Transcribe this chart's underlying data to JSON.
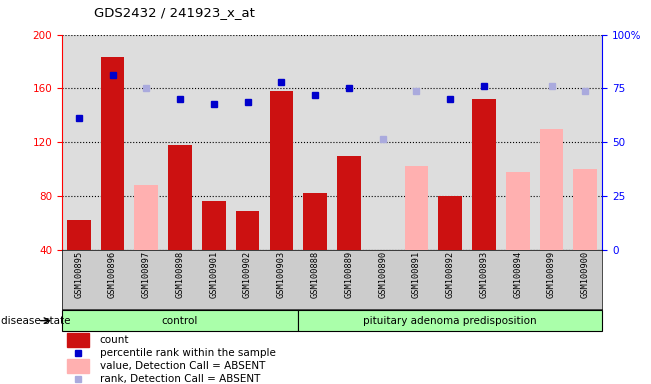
{
  "title": "GDS2432 / 241923_x_at",
  "samples": [
    "GSM100895",
    "GSM100896",
    "GSM100897",
    "GSM100898",
    "GSM100901",
    "GSM100902",
    "GSM100903",
    "GSM100888",
    "GSM100889",
    "GSM100890",
    "GSM100891",
    "GSM100892",
    "GSM100893",
    "GSM100894",
    "GSM100899",
    "GSM100900"
  ],
  "n_control": 7,
  "n_pituitary": 9,
  "count_values": [
    62,
    183,
    null,
    118,
    76,
    69,
    158,
    82,
    110,
    null,
    null,
    80,
    152,
    null,
    null,
    null
  ],
  "absent_value_bars": [
    null,
    null,
    88,
    null,
    null,
    null,
    null,
    null,
    null,
    null,
    102,
    null,
    null,
    98,
    130,
    100
  ],
  "percentile_rank_left": [
    138,
    170,
    null,
    152,
    148,
    150,
    165,
    155,
    160,
    null,
    null,
    152,
    162,
    null,
    null,
    null
  ],
  "absent_rank_left": [
    null,
    null,
    160,
    null,
    null,
    null,
    null,
    null,
    null,
    122,
    158,
    null,
    null,
    null,
    162,
    158
  ],
  "ylim_left": [
    40,
    200
  ],
  "ylim_right": [
    0,
    100
  ],
  "y_ticks_left": [
    40,
    80,
    120,
    160,
    200
  ],
  "y_ticks_right": [
    0,
    25,
    50,
    75,
    100
  ],
  "bar_color_red": "#CC1111",
  "bar_color_pink": "#FFB0B0",
  "dot_color_blue": "#0000CC",
  "dot_color_lightblue": "#AAAADD",
  "group_label_control": "control",
  "group_label_pit": "pituitary adenoma predisposition",
  "group_bg": "#AAFFAA",
  "xlabel_label": "disease state",
  "plot_bg": "#DDDDDD",
  "legend_items": [
    {
      "label": "count",
      "color": "#CC1111",
      "type": "bar"
    },
    {
      "label": "percentile rank within the sample",
      "color": "#0000CC",
      "type": "dot"
    },
    {
      "label": "value, Detection Call = ABSENT",
      "color": "#FFB0B0",
      "type": "bar"
    },
    {
      "label": "rank, Detection Call = ABSENT",
      "color": "#AAAADD",
      "type": "dot"
    }
  ]
}
